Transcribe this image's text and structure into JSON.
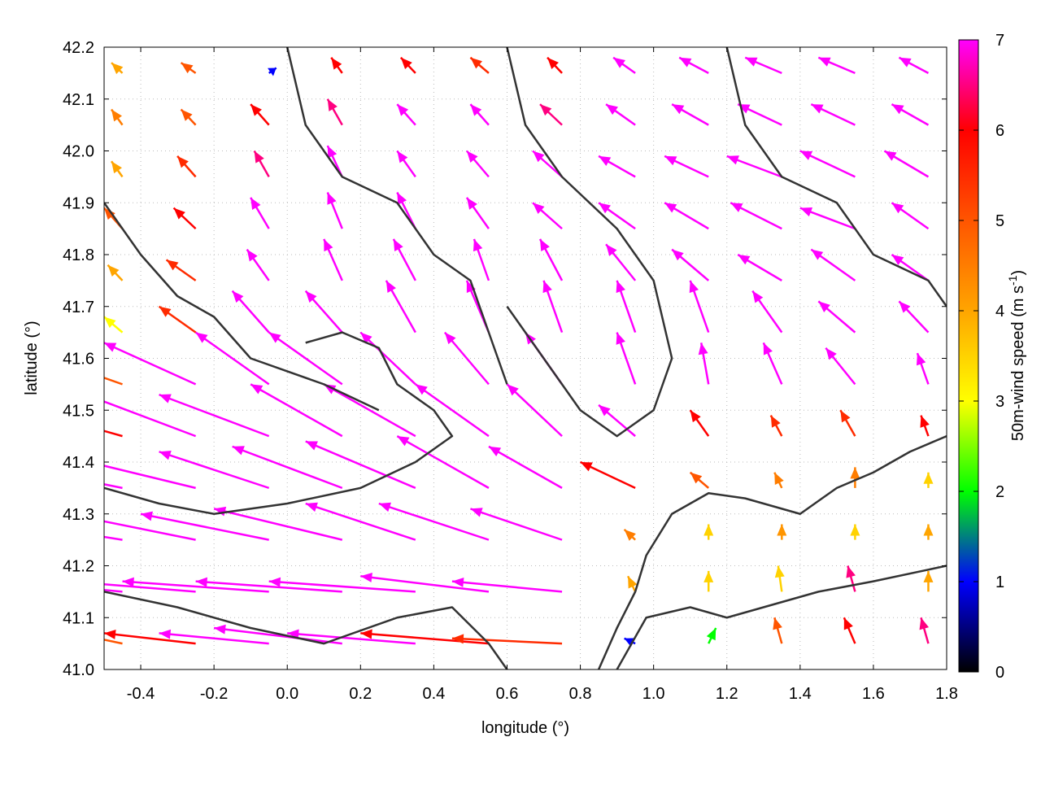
{
  "chart_data": {
    "type": "vector-field",
    "xlabel": "longitude (°)",
    "ylabel": "latitude (°)",
    "xlim": [
      -0.5,
      1.8
    ],
    "ylim": [
      41.0,
      42.2
    ],
    "xticks": [
      "-0.4",
      "-0.2",
      "0.0",
      "0.2",
      "0.4",
      "0.6",
      "0.8",
      "1.0",
      "1.2",
      "1.4",
      "1.6",
      "1.8"
    ],
    "yticks": [
      "41.0",
      "41.1",
      "41.2",
      "41.3",
      "41.4",
      "41.5",
      "41.6",
      "41.7",
      "41.8",
      "41.9",
      "42.0",
      "42.1",
      "42.2"
    ],
    "grid": true,
    "colorbar": {
      "label": "50m-wind speed (m s",
      "label_sup": "-1",
      "label_end": ")",
      "range": [
        0,
        7
      ],
      "ticks": [
        "0",
        "1",
        "2",
        "3",
        "4",
        "5",
        "6",
        "7"
      ],
      "stops": [
        "#000000",
        "#0000ff",
        "#00ff00",
        "#ffff00",
        "#ffa500",
        "#ff5500",
        "#ff0000",
        "#ff00ff"
      ]
    },
    "vectors": {
      "lon": [
        -0.45,
        -0.25,
        -0.05,
        0.15,
        0.35,
        0.55,
        0.75,
        0.95,
        1.15,
        1.35,
        1.55,
        1.75
      ],
      "lat": [
        41.05,
        41.15,
        41.25,
        41.35,
        41.45,
        41.55,
        41.65,
        41.75,
        41.85,
        41.95,
        42.05,
        42.15
      ],
      "u": [
        [
          -0.2,
          -0.25,
          -0.3,
          -0.35,
          -0.35,
          -0.35,
          -0.3,
          -0.03,
          0.02,
          -0.02,
          -0.03,
          -0.02
        ],
        [
          -0.3,
          -0.35,
          -0.4,
          -0.4,
          -0.4,
          -0.35,
          -0.3,
          -0.02,
          0.0,
          -0.01,
          -0.02,
          0
        ],
        [
          -0.35,
          -0.35,
          -0.35,
          -0.35,
          -0.3,
          -0.3,
          -0.25,
          -0.03,
          0,
          0,
          0,
          0
        ],
        [
          -0.35,
          -0.35,
          -0.3,
          -0.3,
          -0.3,
          -0.25,
          -0.2,
          -0.15,
          -0.05,
          -0.02,
          0,
          0
        ],
        [
          -0.3,
          -0.3,
          -0.3,
          -0.25,
          -0.25,
          -0.2,
          -0.15,
          -0.1,
          -0.05,
          -0.03,
          -0.04,
          -0.02
        ],
        [
          -0.2,
          -0.25,
          -0.2,
          -0.2,
          -0.15,
          -0.12,
          -0.1,
          -0.05,
          -0.02,
          -0.05,
          -0.08,
          -0.03
        ],
        [
          -0.05,
          -0.1,
          -0.1,
          -0.1,
          -0.08,
          -0.06,
          -0.05,
          -0.05,
          -0.05,
          -0.08,
          -0.1,
          -0.08
        ],
        [
          -0.04,
          -0.08,
          -0.06,
          -0.05,
          -0.06,
          -0.04,
          -0.06,
          -0.08,
          -0.1,
          -0.12,
          -0.12,
          -0.1
        ],
        [
          -0.05,
          -0.06,
          -0.05,
          -0.04,
          -0.05,
          -0.06,
          -0.08,
          -0.1,
          -0.12,
          -0.14,
          -0.15,
          -0.1
        ],
        [
          -0.03,
          -0.05,
          -0.04,
          -0.04,
          -0.05,
          -0.06,
          -0.08,
          -0.1,
          -0.12,
          -0.15,
          -0.15,
          -0.12
        ],
        [
          -0.03,
          -0.04,
          -0.05,
          -0.04,
          -0.05,
          -0.05,
          -0.06,
          -0.08,
          -0.1,
          -0.12,
          -0.12,
          -0.1
        ],
        [
          -0.03,
          -0.04,
          0.02,
          -0.03,
          -0.04,
          -0.05,
          -0.04,
          -0.06,
          -0.08,
          -0.1,
          -0.1,
          -0.08
        ]
      ],
      "v": [
        [
          0.03,
          0.02,
          0.02,
          0.03,
          0.02,
          0.02,
          0.01,
          0.01,
          0.03,
          0.05,
          0.05,
          0.05
        ],
        [
          0.02,
          0.02,
          0.02,
          0.02,
          0.02,
          0.03,
          0.02,
          0.03,
          0.04,
          0.05,
          0.05,
          0.04
        ],
        [
          0.04,
          0.05,
          0.05,
          0.06,
          0.07,
          0.07,
          0.06,
          0.02,
          0.03,
          0.03,
          0.03,
          0.03
        ],
        [
          0.05,
          0.06,
          0.07,
          0.08,
          0.09,
          0.1,
          0.08,
          0.05,
          0.03,
          0.03,
          0.04,
          0.03
        ],
        [
          0.06,
          0.08,
          0.08,
          0.1,
          0.1,
          0.1,
          0.1,
          0.06,
          0.05,
          0.04,
          0.05,
          0.04
        ],
        [
          0.05,
          0.08,
          0.1,
          0.1,
          0.1,
          0.1,
          0.1,
          0.1,
          0.08,
          0.08,
          0.07,
          0.06
        ],
        [
          0.03,
          0.05,
          0.08,
          0.08,
          0.1,
          0.1,
          0.1,
          0.1,
          0.1,
          0.08,
          0.06,
          0.06
        ],
        [
          0.03,
          0.04,
          0.06,
          0.08,
          0.08,
          0.08,
          0.08,
          0.07,
          0.06,
          0.05,
          0.06,
          0.05
        ],
        [
          0.04,
          0.04,
          0.06,
          0.07,
          0.07,
          0.06,
          0.05,
          0.05,
          0.05,
          0.05,
          0.04,
          0.05
        ],
        [
          0.03,
          0.04,
          0.05,
          0.06,
          0.05,
          0.05,
          0.05,
          0.04,
          0.04,
          0.04,
          0.05,
          0.05
        ],
        [
          0.03,
          0.03,
          0.04,
          0.05,
          0.04,
          0.04,
          0.04,
          0.04,
          0.04,
          0.04,
          0.04,
          0.04
        ],
        [
          0.02,
          0.02,
          0.01,
          0.03,
          0.03,
          0.03,
          0.03,
          0.03,
          0.03,
          0.03,
          0.03,
          0.03
        ]
      ],
      "speed": [
        [
          5,
          6,
          7,
          7,
          7,
          6,
          5.5,
          1,
          2,
          5,
          6,
          6.5
        ],
        [
          7,
          7,
          7,
          7,
          7,
          7,
          7,
          4,
          3.5,
          3.5,
          6.5,
          4
        ],
        [
          7,
          7,
          7,
          7,
          7,
          7,
          7,
          4.5,
          3.5,
          4.2,
          3.5,
          4
        ],
        [
          7,
          7,
          7,
          7,
          7,
          7,
          7,
          6,
          5,
          4.5,
          4.5,
          3.5
        ],
        [
          6,
          7,
          7,
          7,
          7,
          7,
          7,
          7,
          6,
          5.5,
          5.5,
          6
        ],
        [
          5,
          7,
          7,
          7,
          7,
          7,
          7,
          7,
          7,
          7,
          7,
          7
        ],
        [
          3,
          5.5,
          7,
          7,
          7,
          7,
          7,
          7,
          7,
          7,
          7,
          7
        ],
        [
          4,
          5.5,
          7,
          7,
          7,
          7,
          7,
          7,
          7,
          7,
          7,
          7
        ],
        [
          5,
          6,
          7,
          7,
          7,
          7,
          7,
          7,
          7,
          7,
          7,
          7
        ],
        [
          4,
          5.5,
          6.5,
          7,
          7,
          7,
          7,
          7,
          7,
          7,
          7,
          7
        ],
        [
          4.5,
          5,
          6,
          6.5,
          7,
          7,
          6.5,
          7,
          7,
          7,
          7,
          7
        ],
        [
          4,
          5,
          1,
          6,
          6,
          5.5,
          6,
          7,
          7,
          7,
          7,
          7
        ]
      ]
    },
    "contours": [
      [
        [
          -0.5,
          41.35
        ],
        [
          -0.35,
          41.32
        ],
        [
          -0.2,
          41.3
        ],
        [
          0,
          41.32
        ],
        [
          0.2,
          41.35
        ],
        [
          0.35,
          41.4
        ],
        [
          0.45,
          41.45
        ],
        [
          0.4,
          41.5
        ],
        [
          0.3,
          41.55
        ],
        [
          0.25,
          41.62
        ],
        [
          0.15,
          41.65
        ],
        [
          0.05,
          41.63
        ]
      ],
      [
        [
          0.85,
          41.0
        ],
        [
          0.9,
          41.08
        ],
        [
          0.95,
          41.15
        ],
        [
          0.98,
          41.22
        ],
        [
          1.05,
          41.3
        ],
        [
          1.15,
          41.34
        ],
        [
          1.25,
          41.33
        ],
        [
          1.4,
          41.3
        ],
        [
          1.5,
          41.35
        ],
        [
          1.6,
          41.38
        ],
        [
          1.7,
          41.42
        ],
        [
          1.8,
          41.45
        ]
      ],
      [
        [
          0.9,
          41.0
        ],
        [
          0.98,
          41.1
        ],
        [
          1.1,
          41.12
        ],
        [
          1.2,
          41.1
        ],
        [
          1.3,
          41.12
        ],
        [
          1.45,
          41.15
        ],
        [
          1.6,
          41.17
        ],
        [
          1.8,
          41.2
        ]
      ],
      [
        [
          0.6,
          42.2
        ],
        [
          0.65,
          42.05
        ],
        [
          0.75,
          41.95
        ],
        [
          0.9,
          41.85
        ],
        [
          1.0,
          41.75
        ],
        [
          1.05,
          41.6
        ],
        [
          1.0,
          41.5
        ],
        [
          0.9,
          41.45
        ],
        [
          0.8,
          41.5
        ],
        [
          0.7,
          41.6
        ],
        [
          0.6,
          41.7
        ]
      ],
      [
        [
          -0.5,
          41.9
        ],
        [
          -0.4,
          41.8
        ],
        [
          -0.3,
          41.72
        ],
        [
          -0.2,
          41.68
        ],
        [
          -0.1,
          41.6
        ],
        [
          0.1,
          41.55
        ],
        [
          0.25,
          41.5
        ]
      ],
      [
        [
          -0.5,
          41.15
        ],
        [
          -0.3,
          41.12
        ],
        [
          -0.1,
          41.08
        ],
        [
          0.1,
          41.05
        ],
        [
          0.3,
          41.1
        ],
        [
          0.45,
          41.12
        ],
        [
          0.55,
          41.05
        ],
        [
          0.6,
          41.0
        ]
      ],
      [
        [
          1.2,
          42.2
        ],
        [
          1.25,
          42.05
        ],
        [
          1.35,
          41.95
        ],
        [
          1.5,
          41.9
        ],
        [
          1.6,
          41.8
        ],
        [
          1.75,
          41.75
        ],
        [
          1.8,
          41.7
        ]
      ],
      [
        [
          0.0,
          42.2
        ],
        [
          0.05,
          42.05
        ],
        [
          0.15,
          41.95
        ],
        [
          0.3,
          41.9
        ],
        [
          0.4,
          41.8
        ],
        [
          0.5,
          41.75
        ],
        [
          0.55,
          41.65
        ],
        [
          0.6,
          41.55
        ]
      ]
    ]
  }
}
